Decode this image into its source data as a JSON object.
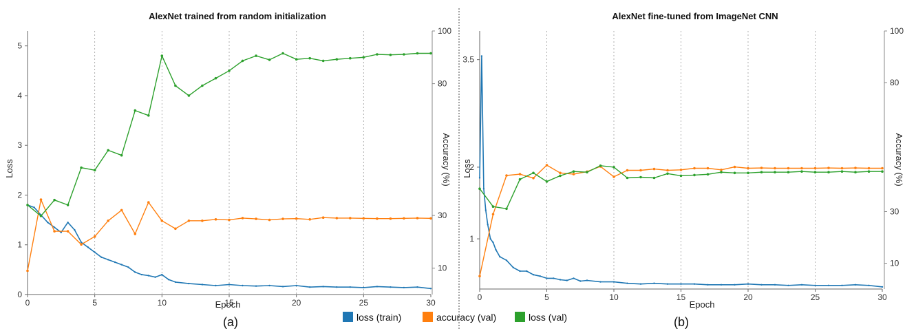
{
  "colors": {
    "loss_train": "#1f77b4",
    "accuracy_val": "#ff7f0e",
    "loss_val": "#2ca02c"
  },
  "legend": {
    "items": [
      {
        "label": "loss (train)",
        "color": "#1f77b4"
      },
      {
        "label": "accuracy (val)",
        "color": "#ff7f0e"
      },
      {
        "label": "loss (val)",
        "color": "#2ca02c"
      }
    ]
  },
  "chart_data": [
    {
      "type": "line",
      "title": "AlexNet trained  from random initialization",
      "subcaption": "(a)",
      "xlabel": "Epoch",
      "ylabel_left": "Loss",
      "ylabel_right": "Accuracy (%)",
      "xlim": [
        0,
        30
      ],
      "ylim_left": [
        0,
        5.3
      ],
      "ylim_right": [
        0,
        100
      ],
      "x_ticks": [
        "0",
        "5",
        "10",
        "15",
        "20",
        "25",
        "30"
      ],
      "y_ticks_left": [
        "0",
        "1",
        "2",
        "3",
        "4",
        "5"
      ],
      "y_ticks_right": [
        "10",
        "30",
        "80",
        "100"
      ],
      "grid": "vertical dotted at x = 5, 10, 15, 20, 25",
      "series": [
        {
          "name": "loss (train)",
          "axis": "left",
          "x": [
            0,
            0.5,
            1,
            1.5,
            2,
            2.5,
            3,
            3.5,
            4,
            4.5,
            5,
            5.5,
            6,
            6.5,
            7,
            7.5,
            8,
            8.5,
            9,
            9.5,
            10,
            10.5,
            11,
            12,
            13,
            14,
            15,
            16,
            17,
            18,
            19,
            20,
            21,
            22,
            23,
            24,
            25,
            26,
            27,
            28,
            29,
            30
          ],
          "values": [
            1.8,
            1.75,
            1.6,
            1.45,
            1.35,
            1.25,
            1.45,
            1.3,
            1.05,
            0.95,
            0.85,
            0.75,
            0.7,
            0.65,
            0.6,
            0.55,
            0.45,
            0.4,
            0.38,
            0.35,
            0.4,
            0.3,
            0.25,
            0.22,
            0.2,
            0.18,
            0.2,
            0.18,
            0.17,
            0.18,
            0.16,
            0.18,
            0.15,
            0.16,
            0.15,
            0.15,
            0.14,
            0.16,
            0.15,
            0.14,
            0.15,
            0.12
          ]
        },
        {
          "name": "accuracy (val)",
          "axis": "right",
          "x": [
            0,
            1,
            2,
            3,
            4,
            5,
            6,
            7,
            8,
            9,
            10,
            11,
            12,
            13,
            14,
            15,
            16,
            17,
            18,
            19,
            20,
            21,
            22,
            23,
            24,
            25,
            26,
            27,
            28,
            29,
            30
          ],
          "values": [
            9,
            36,
            24,
            24,
            19,
            22,
            28,
            32,
            23,
            35,
            28,
            25,
            28,
            28,
            28.5,
            28.3,
            29,
            28.7,
            28.3,
            28.7,
            28.8,
            28.5,
            29.2,
            29,
            29,
            28.9,
            28.8,
            28.8,
            28.9,
            29,
            28.9
          ]
        },
        {
          "name": "loss (val)",
          "axis": "left",
          "x": [
            0,
            1,
            2,
            3,
            4,
            5,
            6,
            7,
            8,
            9,
            10,
            11,
            12,
            13,
            14,
            15,
            16,
            17,
            18,
            19,
            20,
            21,
            22,
            23,
            24,
            25,
            26,
            27,
            28,
            29,
            30
          ],
          "values": [
            1.8,
            1.58,
            1.9,
            1.8,
            2.55,
            2.5,
            2.9,
            2.8,
            3.7,
            3.6,
            4.8,
            4.2,
            4.0,
            4.2,
            4.35,
            4.5,
            4.7,
            4.8,
            4.72,
            4.85,
            4.73,
            4.75,
            4.7,
            4.73,
            4.75,
            4.77,
            4.83,
            4.82,
            4.83,
            4.85,
            4.85
          ]
        }
      ]
    },
    {
      "type": "line",
      "title": "AlexNet fine-tuned from ImageNet CNN",
      "subcaption": "(b)",
      "xlabel": "Epoch",
      "ylabel_left": "Loss",
      "ylabel_right": "Accuracy (%)",
      "xlim": [
        0,
        30
      ],
      "ylim_left": [
        0.3,
        3.9
      ],
      "ylim_right": [
        0,
        100
      ],
      "x_ticks": [
        "0",
        "5",
        "10",
        "15",
        "20",
        "25",
        "30"
      ],
      "y_ticks_left": [
        "1",
        "2",
        "3.5"
      ],
      "y_ticks_right": [
        "10",
        "30",
        "80",
        "100"
      ],
      "grid": "vertical dotted at x = 5, 10, 15, 20, 25",
      "series": [
        {
          "name": "loss (train)",
          "axis": "left",
          "x": [
            0,
            0.15,
            0.3,
            0.45,
            0.6,
            0.8,
            1,
            1.2,
            1.5,
            2,
            2.5,
            3,
            3.5,
            4,
            4.5,
            5,
            5.5,
            6,
            6.5,
            7,
            7.5,
            8,
            9,
            10,
            11,
            12,
            13,
            14,
            15,
            16,
            17,
            18,
            19,
            20,
            21,
            22,
            23,
            24,
            25,
            26,
            27,
            28,
            29,
            30
          ],
          "values": [
            1.85,
            3.55,
            1.7,
            1.4,
            1.2,
            1.0,
            0.95,
            0.85,
            0.75,
            0.7,
            0.6,
            0.55,
            0.55,
            0.5,
            0.48,
            0.45,
            0.45,
            0.43,
            0.42,
            0.45,
            0.41,
            0.42,
            0.4,
            0.4,
            0.38,
            0.37,
            0.38,
            0.37,
            0.37,
            0.37,
            0.36,
            0.36,
            0.36,
            0.37,
            0.36,
            0.36,
            0.35,
            0.36,
            0.35,
            0.35,
            0.35,
            0.36,
            0.35,
            0.33
          ]
        },
        {
          "name": "accuracy (val)",
          "axis": "right",
          "x": [
            0,
            1,
            2,
            3,
            4,
            5,
            6,
            7,
            8,
            9,
            10,
            11,
            12,
            13,
            14,
            15,
            16,
            17,
            18,
            19,
            20,
            21,
            22,
            23,
            24,
            25,
            26,
            27,
            28,
            29,
            30
          ],
          "values": [
            5,
            29,
            44,
            44.5,
            43,
            48,
            45,
            44.5,
            45.5,
            47.5,
            43.5,
            46,
            46,
            46.5,
            46,
            46.2,
            46.8,
            46.8,
            46.2,
            47.3,
            46.8,
            46.9,
            46.8,
            46.8,
            46.8,
            46.8,
            46.9,
            46.8,
            46.9,
            46.8,
            46.8
          ]
        },
        {
          "name": "loss (val)",
          "axis": "left",
          "x": [
            0,
            1,
            2,
            3,
            4,
            5,
            6,
            7,
            8,
            9,
            10,
            11,
            12,
            13,
            14,
            15,
            16,
            17,
            18,
            19,
            20,
            21,
            22,
            23,
            24,
            25,
            26,
            27,
            28,
            29,
            30
          ],
          "values": [
            1.7,
            1.45,
            1.42,
            1.83,
            1.92,
            1.8,
            1.88,
            1.94,
            1.93,
            2.02,
            2.0,
            1.85,
            1.86,
            1.85,
            1.91,
            1.88,
            1.89,
            1.9,
            1.93,
            1.92,
            1.92,
            1.93,
            1.93,
            1.93,
            1.94,
            1.93,
            1.93,
            1.94,
            1.93,
            1.94,
            1.94
          ]
        }
      ]
    }
  ]
}
